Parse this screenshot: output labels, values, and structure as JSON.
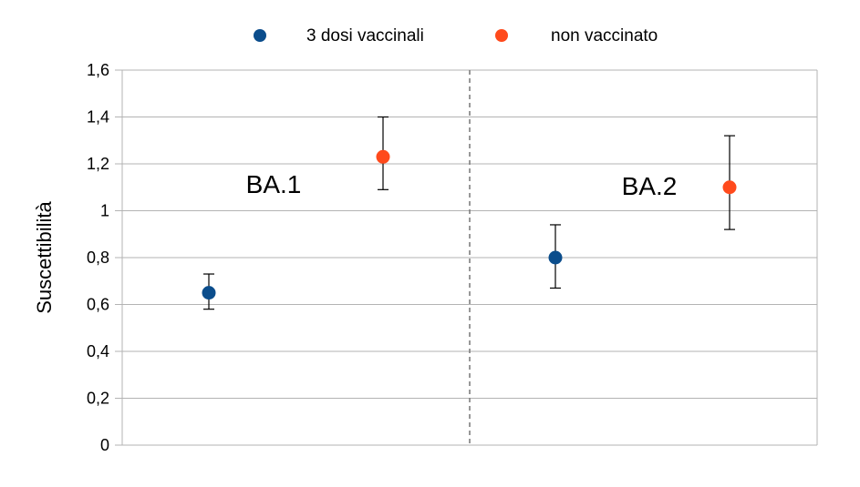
{
  "chart_data": {
    "type": "scatter",
    "title": "",
    "xlabel": "",
    "ylabel": "Suscettibilità",
    "ylim": [
      0,
      1.6
    ],
    "y_ticks": [
      "0",
      "0,2",
      "0,4",
      "0,6",
      "0,8",
      "1",
      "1,2",
      "1,4",
      "1,6"
    ],
    "y_tick_values": [
      0,
      0.2,
      0.4,
      0.6,
      0.8,
      1.0,
      1.2,
      1.4,
      1.6
    ],
    "grid": true,
    "legend_position": "top",
    "groups": [
      {
        "label": "BA.1"
      },
      {
        "label": "BA.2"
      }
    ],
    "series": [
      {
        "name": "3 dosi vaccinali",
        "color": "#0b4d8c",
        "points": [
          {
            "group": "BA.1",
            "y": 0.65,
            "err_low": 0.58,
            "err_high": 0.73
          },
          {
            "group": "BA.2",
            "y": 0.8,
            "err_low": 0.67,
            "err_high": 0.94
          }
        ]
      },
      {
        "name": "non vaccinato",
        "color": "#ff4a1c",
        "points": [
          {
            "group": "BA.1",
            "y": 1.23,
            "err_low": 1.09,
            "err_high": 1.4
          },
          {
            "group": "BA.2",
            "y": 1.1,
            "err_low": 0.92,
            "err_high": 1.32
          }
        ]
      }
    ]
  }
}
